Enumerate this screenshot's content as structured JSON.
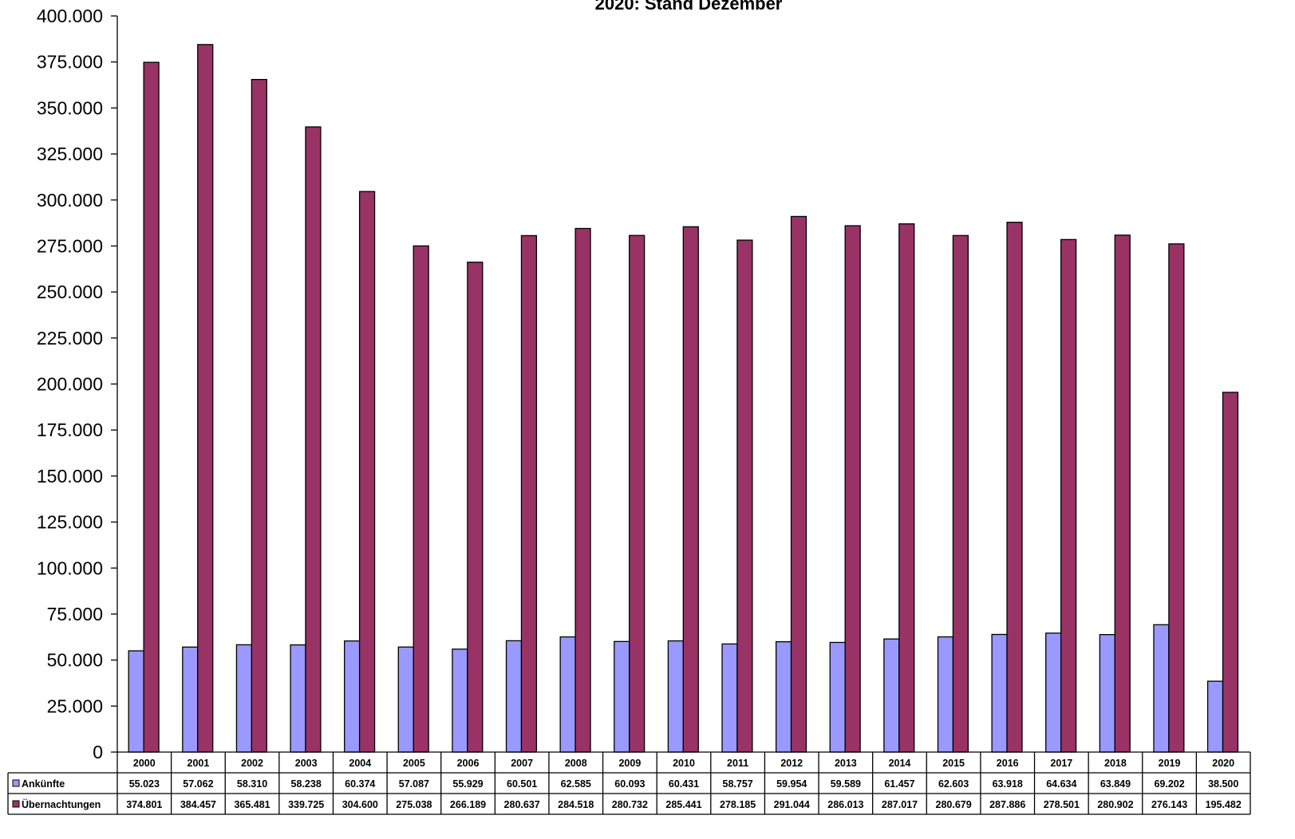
{
  "chart_data": {
    "type": "bar",
    "title": "2020: Stand Dezember",
    "categories": [
      "2000",
      "2001",
      "2002",
      "2003",
      "2004",
      "2005",
      "2006",
      "2007",
      "2008",
      "2009",
      "2010",
      "2011",
      "2012",
      "2013",
      "2014",
      "2015",
      "2016",
      "2017",
      "2018",
      "2019",
      "2020"
    ],
    "series": [
      {
        "name": "Ankünfte",
        "color": "#9999ff",
        "values": [
          55023,
          57062,
          58310,
          58238,
          60374,
          57087,
          55929,
          60501,
          62585,
          60093,
          60431,
          58757,
          59954,
          59589,
          61457,
          62603,
          63918,
          64634,
          63849,
          69202,
          38500
        ],
        "labels": [
          "55.023",
          "57.062",
          "58.310",
          "58.238",
          "60.374",
          "57.087",
          "55.929",
          "60.501",
          "62.585",
          "60.093",
          "60.431",
          "58.757",
          "59.954",
          "59.589",
          "61.457",
          "62.603",
          "63.918",
          "64.634",
          "63.849",
          "69.202",
          "38.500"
        ]
      },
      {
        "name": "Übernachtungen",
        "color": "#993366",
        "values": [
          374801,
          384457,
          365481,
          339725,
          304600,
          275038,
          266189,
          280637,
          284518,
          280732,
          285441,
          278185,
          291044,
          286013,
          287017,
          280679,
          287886,
          278501,
          280902,
          276143,
          195482
        ],
        "labels": [
          "374.801",
          "384.457",
          "365.481",
          "339.725",
          "304.600",
          "275.038",
          "266.189",
          "280.637",
          "284.518",
          "280.732",
          "285.441",
          "278.185",
          "291.044",
          "286.013",
          "287.017",
          "280.679",
          "287.886",
          "278.501",
          "280.902",
          "276.143",
          "195.482"
        ]
      }
    ],
    "ylim": [
      0,
      400000
    ],
    "yticks": [
      "0",
      "25.000",
      "50.000",
      "75.000",
      "100.000",
      "125.000",
      "150.000",
      "175.000",
      "200.000",
      "225.000",
      "250.000",
      "275.000",
      "300.000",
      "325.000",
      "350.000",
      "375.000",
      "400.000"
    ],
    "legend": "data-table",
    "grid": false
  }
}
